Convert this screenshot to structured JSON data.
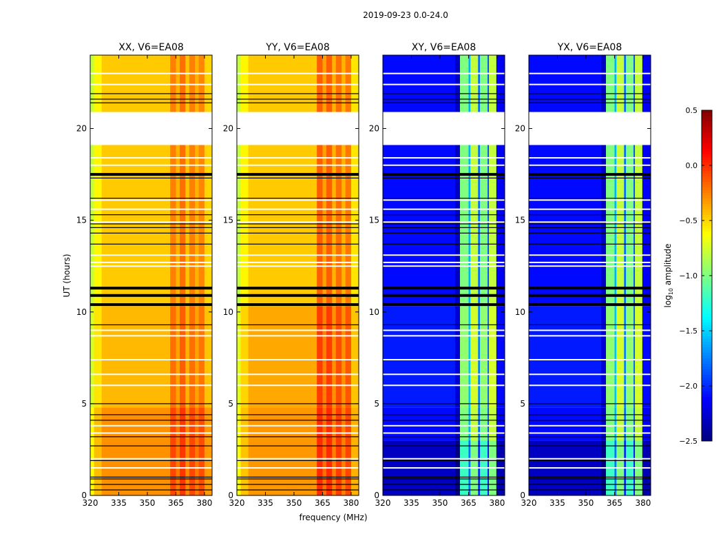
{
  "chart_data": {
    "type": "heatmap",
    "title": "2019-09-23 0.0-24.0",
    "xlabel": "frequency (MHz)",
    "ylabel": "UT (hours)",
    "xlim": [
      320,
      384
    ],
    "ylim": [
      0,
      24
    ],
    "xticks": [
      "320",
      "335",
      "350",
      "365",
      "380"
    ],
    "yticks": [
      "0",
      "5",
      "10",
      "15",
      "20"
    ],
    "colorbar": {
      "label_main": "log",
      "label_sub": "10",
      "label_rest": " amplitude",
      "range": [
        -2.5,
        0.5
      ],
      "colormap": "jet",
      "ticks": [
        "0.5",
        "0.0",
        "−0.5",
        "−1.0",
        "−1.5",
        "−2.0",
        "−2.5"
      ],
      "tick_values": [
        0.5,
        0.0,
        -0.5,
        -1.0,
        -1.5,
        -2.0,
        -2.5
      ]
    },
    "no_data_hours": [
      [
        19.1,
        20.9
      ]
    ],
    "white_lines_hours": [
      23.0,
      22.4,
      18.4,
      18.0,
      16.1,
      15.6,
      14.9,
      13.1,
      12.7,
      12.5,
      9.0,
      8.7,
      7.4,
      6.6,
      6.0,
      3.8,
      3.4,
      2.0,
      1.5
    ],
    "flag_lines_hours": [
      21.9,
      21.6,
      21.4,
      17.3,
      16.2,
      15.3,
      14.8,
      14.6,
      14.3,
      13.7,
      9.3,
      5.0,
      4.4,
      4.1,
      3.2,
      2.7,
      1.9,
      1.0,
      0.9,
      0.6,
      0.3
    ],
    "thick_flag_lines_hours": [
      17.5,
      11.3,
      10.9,
      10.4
    ],
    "panels": [
      {
        "title": "XX, V6=EA08",
        "freq_bands": [
          [
            320,
            322,
            -0.75
          ],
          [
            322,
            326,
            -0.55
          ],
          [
            326,
            362,
            -0.42
          ],
          [
            362,
            365,
            -0.2
          ],
          [
            365,
            367,
            -0.35
          ],
          [
            367,
            370,
            -0.15
          ],
          [
            370,
            372,
            -0.4
          ],
          [
            372,
            375,
            -0.2
          ],
          [
            375,
            377,
            -0.35
          ],
          [
            377,
            380,
            -0.22
          ],
          [
            380,
            384,
            -0.45
          ]
        ],
        "time_offsets": [
          [
            0,
            4.8,
            0.12
          ],
          [
            4.8,
            10.3,
            0.0
          ],
          [
            10.3,
            24,
            -0.05
          ]
        ]
      },
      {
        "title": "YY, V6=EA08",
        "freq_bands": [
          [
            320,
            322,
            -0.75
          ],
          [
            322,
            326,
            -0.55
          ],
          [
            326,
            362,
            -0.42
          ],
          [
            362,
            365,
            -0.1
          ],
          [
            365,
            367,
            -0.3
          ],
          [
            367,
            370,
            -0.1
          ],
          [
            370,
            372,
            -0.35
          ],
          [
            372,
            375,
            -0.15
          ],
          [
            375,
            377,
            -0.35
          ],
          [
            377,
            380,
            -0.18
          ],
          [
            380,
            384,
            -0.5
          ]
        ],
        "time_offsets": [
          [
            0,
            4.8,
            0.1
          ],
          [
            4.8,
            10.3,
            0.05
          ],
          [
            10.3,
            24,
            -0.05
          ]
        ]
      },
      {
        "title": "XY, V6=EA08",
        "freq_bands": [
          [
            320,
            358,
            -2.1
          ],
          [
            358,
            360.5,
            -2.3
          ],
          [
            360.5,
            365,
            -1.0
          ],
          [
            365,
            366,
            -1.6
          ],
          [
            366,
            370,
            -0.8
          ],
          [
            370,
            371,
            -1.8
          ],
          [
            371,
            375,
            -1.0
          ],
          [
            375,
            375.7,
            -1.9
          ],
          [
            375.7,
            379.6,
            -0.8
          ],
          [
            379.6,
            384,
            -2.15
          ]
        ],
        "time_offsets": [
          [
            0,
            3,
            -0.2
          ],
          [
            3,
            4.8,
            0.0
          ],
          [
            4.8,
            10.3,
            0.05
          ],
          [
            10.3,
            24,
            0.0
          ]
        ]
      },
      {
        "title": "YX, V6=EA08",
        "freq_bands": [
          [
            320,
            358,
            -2.1
          ],
          [
            358,
            360.5,
            -2.3
          ],
          [
            360.5,
            365,
            -1.0
          ],
          [
            365,
            366,
            -1.6
          ],
          [
            366,
            370,
            -0.8
          ],
          [
            370,
            371,
            -1.8
          ],
          [
            371,
            375,
            -1.0
          ],
          [
            375,
            375.7,
            -1.9
          ],
          [
            375.7,
            379.6,
            -0.8
          ],
          [
            379.6,
            384,
            -2.15
          ]
        ],
        "time_offsets": [
          [
            0,
            3,
            -0.2
          ],
          [
            3,
            4.8,
            0.0
          ],
          [
            4.8,
            10.3,
            0.05
          ],
          [
            10.3,
            24,
            0.0
          ]
        ]
      }
    ]
  }
}
